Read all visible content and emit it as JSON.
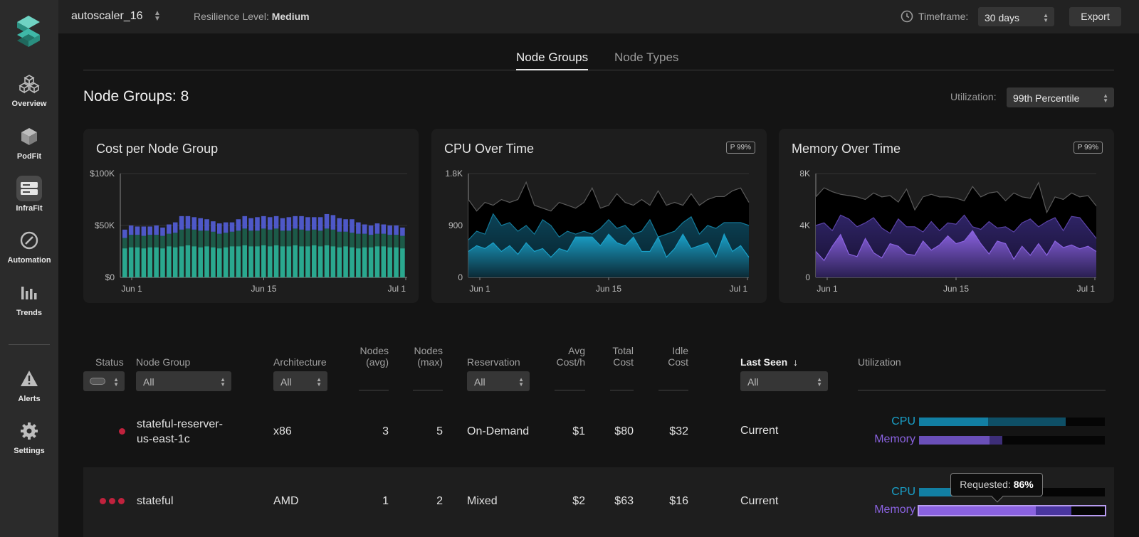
{
  "sidebar": {
    "items": [
      {
        "label": "Overview",
        "icon": "cubes-icon"
      },
      {
        "label": "PodFit",
        "icon": "cube-icon"
      },
      {
        "label": "InfraFit",
        "icon": "server-icon"
      },
      {
        "label": "Automation",
        "icon": "compass-icon"
      },
      {
        "label": "Trends",
        "icon": "bar-chart-icon"
      },
      {
        "label": "Alerts",
        "icon": "warning-icon"
      },
      {
        "label": "Settings",
        "icon": "gear-icon"
      }
    ],
    "active": "InfraFit"
  },
  "topbar": {
    "cluster": "autoscaler_16",
    "resilience_label": "Resilience Level:",
    "resilience_value": "Medium",
    "timeframe_label": "Timeframe:",
    "timeframe_value": "30 days",
    "export_label": "Export"
  },
  "tabs": [
    {
      "label": "Node Groups",
      "active": true
    },
    {
      "label": "Node Types",
      "active": false
    }
  ],
  "section": {
    "title": "Node Groups: 8",
    "utilization_label": "Utilization:",
    "utilization_value": "99th Percentile"
  },
  "colors": {
    "cost_base": "#2aa88f",
    "cost_mid": "#1c5a48",
    "cost_top": "#4e58c8",
    "cpu": "#1aa0c8",
    "memory": "#8a62e0",
    "status_red": "#c0223d"
  },
  "chart_data": [
    {
      "type": "bar",
      "title": "Cost per Node Group",
      "x_ticks": [
        "Jun 1",
        "Jun 15",
        "Jul 1"
      ],
      "y_ticks": [
        "$100K",
        "$50K",
        "$0"
      ],
      "ylim": [
        0,
        100000
      ],
      "stacked": true,
      "series": [
        {
          "values": [
            28,
            29,
            29,
            28,
            29,
            29,
            28,
            30,
            29,
            30,
            31,
            30,
            29,
            30,
            29,
            28,
            29,
            30,
            30,
            31,
            30,
            30,
            31,
            30,
            31,
            30,
            30,
            31,
            30,
            30,
            31,
            30,
            31,
            30,
            29,
            30,
            29,
            28,
            29,
            29,
            30,
            30,
            29,
            29,
            28
          ]
        },
        {
          "values": [
            10,
            12,
            12,
            12,
            12,
            12,
            12,
            12,
            14,
            16,
            16,
            16,
            16,
            15,
            15,
            14,
            14,
            14,
            15,
            16,
            15,
            15,
            16,
            16,
            16,
            15,
            15,
            16,
            16,
            15,
            15,
            15,
            16,
            16,
            15,
            14,
            14,
            14,
            13,
            12,
            12,
            12,
            12,
            12,
            12
          ]
        },
        {
          "values": [
            8,
            9,
            8,
            9,
            8,
            9,
            8,
            9,
            10,
            13,
            12,
            12,
            12,
            11,
            10,
            10,
            10,
            9,
            11,
            12,
            12,
            13,
            12,
            12,
            12,
            12,
            13,
            12,
            13,
            13,
            12,
            13,
            14,
            14,
            13,
            12,
            13,
            11,
            9,
            9,
            10,
            9,
            9,
            9,
            8
          ]
        }
      ]
    },
    {
      "type": "area",
      "title": "CPU Over Time",
      "badge": "P 99%",
      "x_ticks": [
        "Jun 1",
        "Jun 15",
        "Jul 1"
      ],
      "y_ticks": [
        "1.8K",
        "900",
        "0"
      ],
      "ylim": [
        0,
        1800
      ],
      "series": [
        {
          "values": [
            1350,
            1150,
            1300,
            1250,
            1350,
            1300,
            1350,
            1650,
            1250,
            1200,
            1150,
            1300,
            1250,
            1200,
            1300,
            1550,
            1200,
            1250,
            1450,
            1300,
            1250,
            1350,
            1250,
            1500,
            1250,
            1300,
            1250,
            1450,
            1250,
            1350,
            1400,
            1400,
            1500,
            1550,
            1300
          ]
        },
        {
          "values": [
            650,
            800,
            750,
            1100,
            900,
            950,
            800,
            900,
            750,
            1000,
            900,
            700,
            800,
            750,
            800,
            750,
            850,
            1000,
            850,
            900,
            750,
            800,
            1000,
            700,
            750,
            800,
            950,
            1050,
            750,
            900,
            850,
            950,
            950,
            950,
            900
          ]
        },
        {
          "values": [
            450,
            550,
            500,
            600,
            450,
            550,
            400,
            600,
            450,
            500,
            350,
            500,
            450,
            700,
            700,
            700,
            550,
            750,
            600,
            550,
            700,
            450,
            450,
            700,
            350,
            500,
            750,
            500,
            550,
            600,
            350,
            750,
            450,
            550,
            350
          ]
        }
      ]
    },
    {
      "type": "area",
      "title": "Memory Over Time",
      "badge": "P 99%",
      "x_ticks": [
        "Jun 1",
        "Jun 15",
        "Jul 1"
      ],
      "y_ticks": [
        "8K",
        "4K",
        "0"
      ],
      "ylim": [
        0,
        8000
      ],
      "series": [
        {
          "values": [
            6200,
            6900,
            6600,
            6400,
            6300,
            6200,
            6000,
            6500,
            6200,
            6300,
            5800,
            6800,
            5200,
            6200,
            6400,
            6200,
            6200,
            6100,
            5900,
            7000,
            6200,
            6500,
            6600,
            5900,
            6500,
            6200,
            6100,
            7300,
            5000,
            6200,
            6000,
            6500,
            6200,
            6300,
            5500
          ]
        },
        {
          "values": [
            4000,
            4200,
            3600,
            4800,
            4500,
            3900,
            4200,
            4600,
            3800,
            3400,
            4500,
            3900,
            3900,
            3500,
            4300,
            3600,
            4200,
            4100,
            4800,
            3900,
            3700,
            4300,
            3800,
            3900,
            3500,
            4200,
            4500,
            3900,
            4300,
            4600,
            3600,
            4700,
            4600,
            3800,
            3000
          ]
        },
        {
          "values": [
            2000,
            1300,
            2400,
            3300,
            1800,
            1600,
            3000,
            1900,
            1500,
            2600,
            2400,
            1800,
            1700,
            2800,
            2100,
            2500,
            3200,
            2600,
            2800,
            3600,
            2600,
            1800,
            2800,
            2600,
            1400,
            2400,
            1700,
            2600,
            1700,
            2800,
            2300,
            2500,
            2200,
            2400,
            2000
          ]
        }
      ]
    }
  ],
  "table": {
    "headers": {
      "status": "Status",
      "node_group": "Node Group",
      "architecture": "Architecture",
      "nodes_avg": [
        "Nodes",
        "(avg)"
      ],
      "nodes_max": [
        "Nodes",
        "(max)"
      ],
      "reservation": "Reservation",
      "avg_cost": [
        "Avg",
        "Cost/h"
      ],
      "total_cost": [
        "Total",
        "Cost"
      ],
      "idle_cost": [
        "Idle",
        "Cost"
      ],
      "last_seen": "Last Seen",
      "utilization": "Utilization"
    },
    "filters": {
      "node_group": "All",
      "architecture": "All",
      "reservation": "All",
      "last_seen": "All"
    },
    "rows": [
      {
        "status_dots": 1,
        "node_group": [
          "stateful-reserver-",
          "us-east-1c"
        ],
        "architecture": "x86",
        "nodes_avg": "3",
        "nodes_max": "5",
        "reservation": "On-Demand",
        "avg_cost": "$1",
        "total_cost": "$80",
        "idle_cost": "$32",
        "last_seen": "Current",
        "cpu_label": "CPU",
        "memory_label": "Memory",
        "cpu_used": 0.37,
        "cpu_requested": 0.79,
        "memory_used": 0.38,
        "memory_requested": 0.45
      },
      {
        "status_dots": 3,
        "node_group": [
          "stateful"
        ],
        "architecture": "AMD",
        "nodes_avg": "1",
        "nodes_max": "2",
        "reservation": "Mixed",
        "avg_cost": "$2",
        "total_cost": "$63",
        "idle_cost": "$16",
        "last_seen": "Current",
        "cpu_label": "CPU",
        "memory_label": "Memory",
        "cpu_used": 0.36,
        "cpu_requested": 0.66,
        "memory_used": 0.63,
        "memory_requested": 0.82
      }
    ],
    "tooltip": {
      "label": "Requested:",
      "value": "86%"
    }
  }
}
